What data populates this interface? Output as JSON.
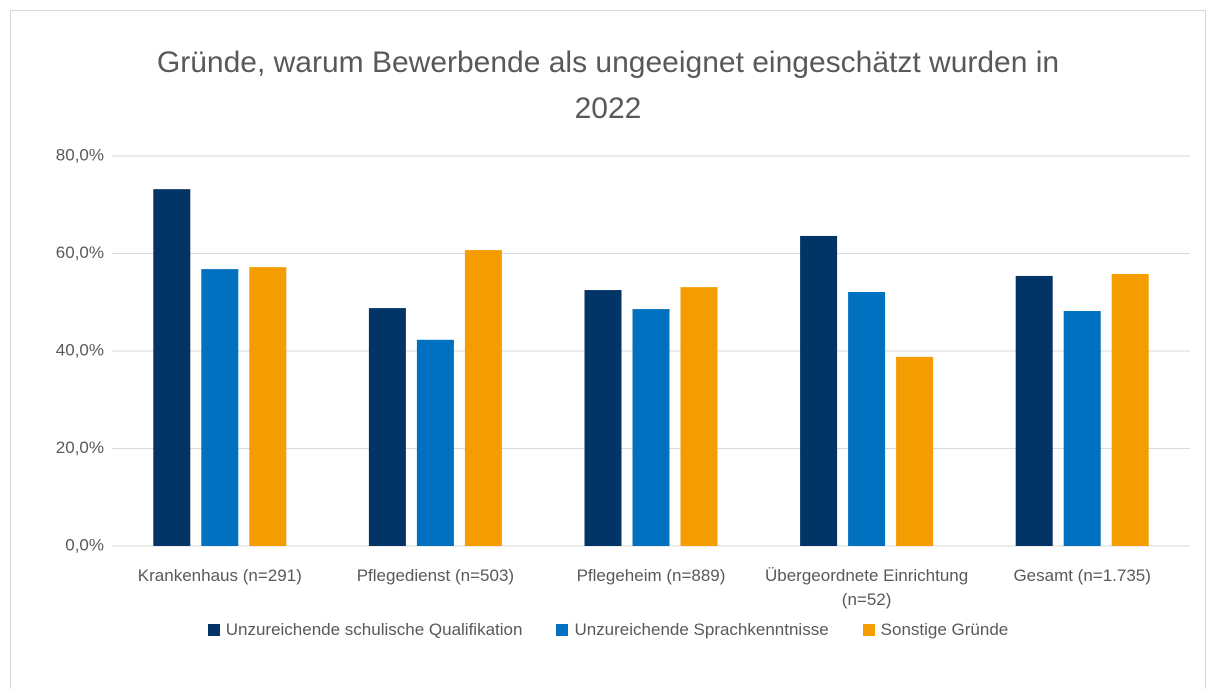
{
  "chart_data": {
    "type": "bar",
    "title": "Gründe, warum Bewerbende als ungeeignet eingeschätzt wurden in 2022",
    "categories": [
      "Krankenhaus (n=291)",
      "Pflegedienst (n=503)",
      "Pflegeheim (n=889)",
      "Übergeordnete Einrichtung (n=52)",
      "Gesamt (n=1.735)"
    ],
    "series": [
      {
        "name": "Unzureichende schulische Qualifikation",
        "color": "#023466",
        "values": [
          73.2,
          48.8,
          52.5,
          63.6,
          55.4
        ]
      },
      {
        "name": "Unzureichende Sprachkenntnisse",
        "color": "#0070c0",
        "values": [
          56.8,
          42.3,
          48.6,
          52.1,
          48.2
        ]
      },
      {
        "name": "Sonstige Gründe",
        "color": "#f59c00",
        "values": [
          57.2,
          60.7,
          53.1,
          38.8,
          55.8
        ]
      }
    ],
    "ylim": [
      0,
      80
    ],
    "yticks": [
      {
        "value": 0,
        "label": "0,0%"
      },
      {
        "value": 20,
        "label": "20,0%"
      },
      {
        "value": 40,
        "label": "40,0%"
      },
      {
        "value": 60,
        "label": "60,0%"
      },
      {
        "value": 80,
        "label": "80,0%"
      }
    ],
    "grid": true,
    "legend": "bottom"
  }
}
